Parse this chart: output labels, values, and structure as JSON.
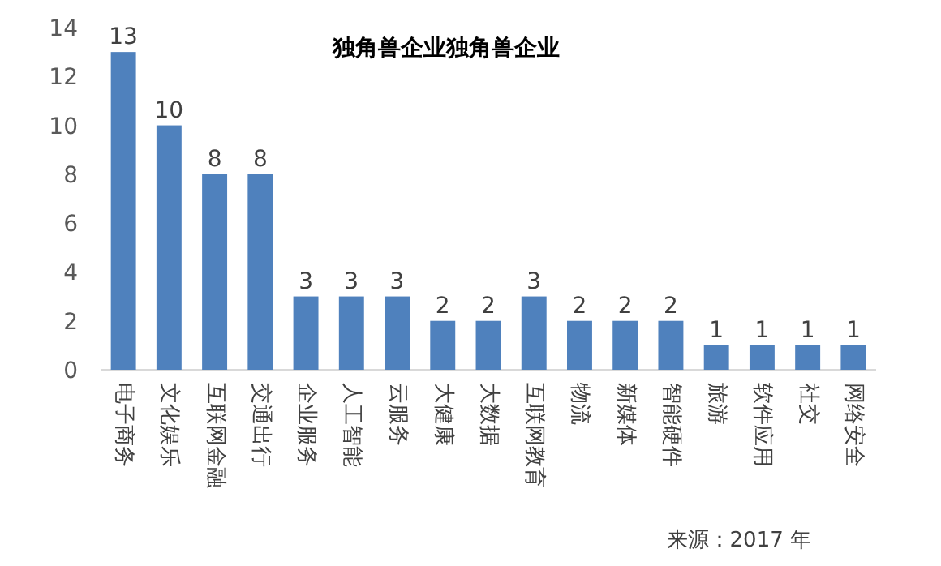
{
  "chart_data": {
    "type": "bar",
    "title": "独角兽企业独角兽企业",
    "categories": [
      "电子商务",
      "文化娱乐",
      "互联网金融",
      "交通出行",
      "企业服务",
      "人工智能",
      "云服务",
      "大健康",
      "大数据",
      "互联网教育",
      "物流",
      "新媒体",
      "智能硬件",
      "旅游",
      "软件应用",
      "社交",
      "网络安全"
    ],
    "values": [
      13,
      10,
      8,
      8,
      3,
      3,
      3,
      2,
      2,
      3,
      2,
      2,
      2,
      1,
      1,
      1,
      1
    ],
    "color": "#4f81bd",
    "ylim": [
      0,
      14
    ],
    "yticks": [
      0,
      2,
      4,
      6,
      8,
      10,
      12,
      14
    ],
    "data_labels": true,
    "grid": false,
    "annotations": [
      "来源：2017 年"
    ]
  }
}
